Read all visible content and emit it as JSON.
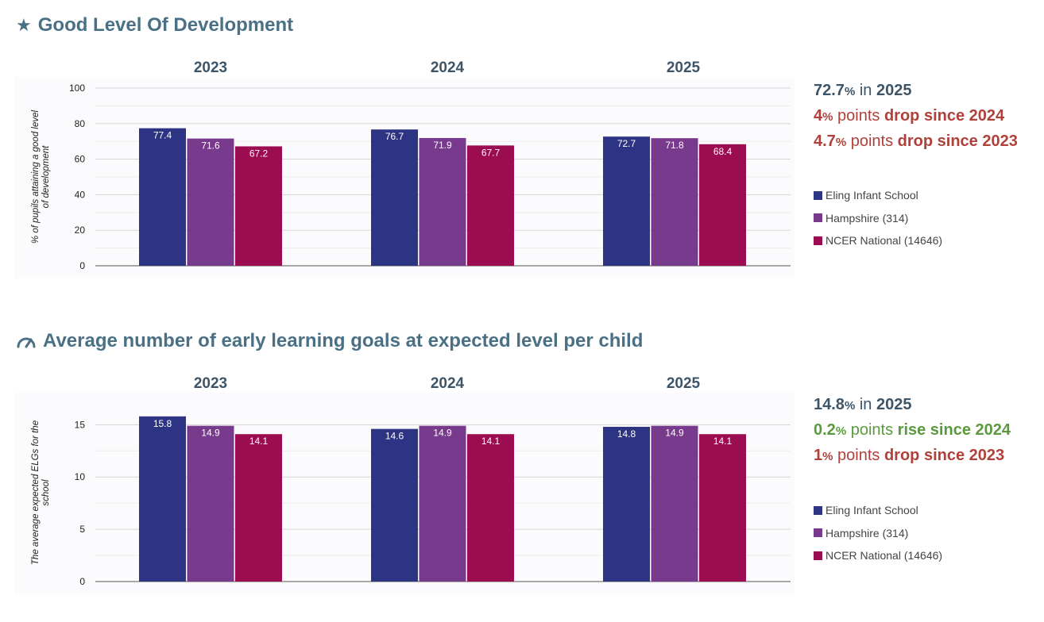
{
  "colors": {
    "title": "#4a7085",
    "neutral_text": "#3e5567",
    "drop": "#b0403a",
    "rise": "#5a9a3c"
  },
  "sections": [
    {
      "title": "Good Level Of Development",
      "icon": "star-icon",
      "summary": {
        "current": {
          "value": "72.7",
          "unit": "%",
          "text": "in",
          "year": "2025"
        },
        "changes": [
          {
            "value": "4",
            "unit": "%",
            "text": "points",
            "direction": "drop",
            "label": "drop since 2024"
          },
          {
            "value": "4.7",
            "unit": "%",
            "text": "points",
            "direction": "drop",
            "label": "drop since 2023"
          }
        ]
      },
      "legend": [
        {
          "label": "Eling Infant School",
          "color": "#2e3484"
        },
        {
          "label": "Hampshire (314)",
          "color": "#783a8c"
        },
        {
          "label": "NCER National (14646)",
          "color": "#9b0c50"
        }
      ]
    },
    {
      "title": "Average number of early learning goals at expected level per child",
      "icon": "gauge-icon",
      "summary": {
        "current": {
          "value": "14.8",
          "unit": "%",
          "text": "in",
          "year": "2025"
        },
        "changes": [
          {
            "value": "0.2",
            "unit": "%",
            "text": "points",
            "direction": "rise",
            "label": "rise since 2024"
          },
          {
            "value": "1",
            "unit": "%",
            "text": "points",
            "direction": "drop",
            "label": "drop since 2023"
          }
        ]
      },
      "legend": [
        {
          "label": "Eling Infant School",
          "color": "#2e3484"
        },
        {
          "label": "Hampshire (314)",
          "color": "#783a8c"
        },
        {
          "label": "NCER National (14646)",
          "color": "#9b0c50"
        }
      ]
    }
  ],
  "chart_data": [
    {
      "type": "bar",
      "title": "Good Level Of Development",
      "categories": [
        "2023",
        "2024",
        "2025"
      ],
      "ylabel": "% of pupils attaining a good level of development",
      "xlabel": "",
      "ylim": [
        0,
        100
      ],
      "yticks": [
        0,
        20,
        40,
        60,
        80,
        100
      ],
      "grid": true,
      "legend_position": "right",
      "series": [
        {
          "name": "Eling Infant School",
          "color": "#2e3484",
          "values": [
            77.4,
            76.7,
            72.7
          ],
          "labels": [
            "77.4",
            "76.7",
            "72.7"
          ]
        },
        {
          "name": "Hampshire (314)",
          "color": "#783a8c",
          "values": [
            71.6,
            71.9,
            71.8
          ],
          "labels": [
            "71.6",
            "71.9",
            "71.8"
          ]
        },
        {
          "name": "NCER National (14646)",
          "color": "#9b0c50",
          "values": [
            67.2,
            67.7,
            68.4
          ],
          "labels": [
            "67.2",
            "67.7",
            "68.4"
          ]
        }
      ]
    },
    {
      "type": "bar",
      "title": "Average number of early learning goals at expected level per child",
      "categories": [
        "2023",
        "2024",
        "2025"
      ],
      "ylabel": "The average expected ELGs for the school",
      "xlabel": "",
      "ylim": [
        0,
        17
      ],
      "yticks": [
        0,
        5,
        10,
        15
      ],
      "grid": true,
      "legend_position": "right",
      "series": [
        {
          "name": "Eling Infant School",
          "color": "#2e3484",
          "values": [
            15.8,
            14.6,
            14.8
          ],
          "labels": [
            "15.8",
            "14.6",
            "14.8"
          ]
        },
        {
          "name": "Hampshire (314)",
          "color": "#783a8c",
          "values": [
            14.9,
            14.9,
            14.9
          ],
          "labels": [
            "14.9",
            "14.9",
            "14.9"
          ]
        },
        {
          "name": "NCER National (14646)",
          "color": "#9b0c50",
          "values": [
            14.1,
            14.1,
            14.1
          ],
          "labels": [
            "14.1",
            "14.1",
            "14.1"
          ]
        }
      ]
    }
  ]
}
